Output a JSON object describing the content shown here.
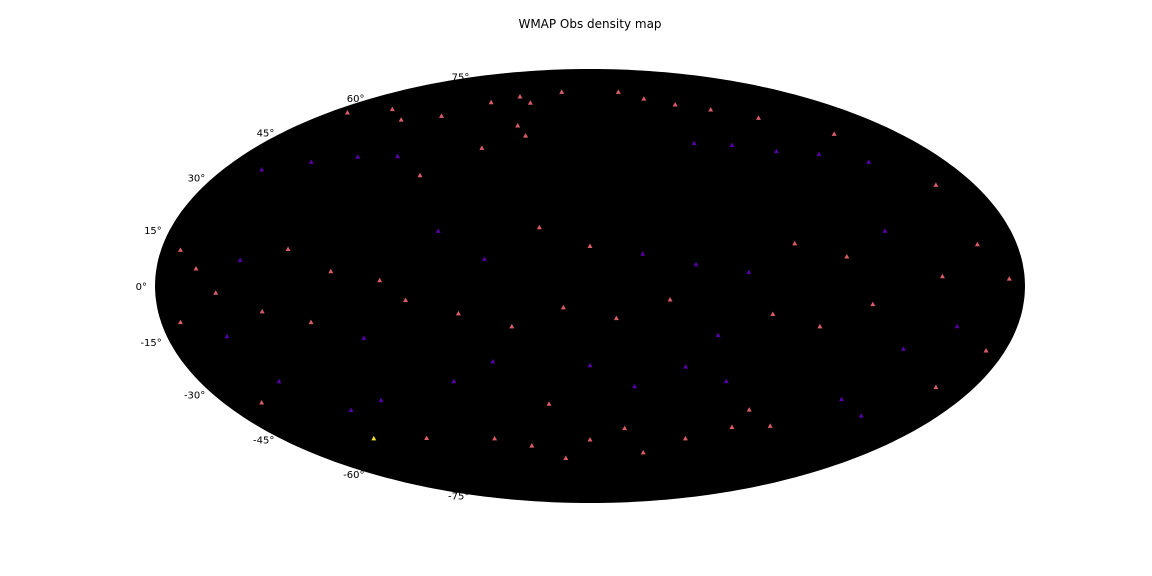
{
  "chart_data": {
    "type": "heatmap",
    "projection": "hammer",
    "title": "WMAP Obs density map",
    "xlabel": "",
    "ylabel": "",
    "lat_ticks": [
      "-75°",
      "-60°",
      "-45°",
      "-30°",
      "-15°",
      "0°",
      "15°",
      "30°",
      "45°",
      "60°",
      "75°"
    ],
    "lat_values": [
      -75,
      -60,
      -45,
      -30,
      -15,
      0,
      15,
      30,
      45,
      60,
      75
    ],
    "lon_range": [
      -180,
      180
    ],
    "lat_range": [
      -90,
      90
    ],
    "grid": false,
    "colormap": "plasma",
    "background_color": "#000000",
    "note": "Sparse low-density cells rendered as small colored marks on black sky map.",
    "cells": [
      {
        "lon": -170,
        "lat": 55,
        "v": 0.55
      },
      {
        "lon": -150,
        "lat": 60,
        "v": 0.55
      },
      {
        "lon": -130,
        "lat": 58,
        "v": 0.55
      },
      {
        "lon": -110,
        "lat": 62,
        "v": 0.55
      },
      {
        "lon": -95,
        "lat": 70,
        "v": 0.55
      },
      {
        "lon": -80,
        "lat": 74,
        "v": 0.55
      },
      {
        "lon": -60,
        "lat": 72,
        "v": 0.55
      },
      {
        "lon": -40,
        "lat": 78,
        "v": 0.55
      },
      {
        "lon": 40,
        "lat": 78,
        "v": 0.55
      },
      {
        "lon": 60,
        "lat": 74,
        "v": 0.55
      },
      {
        "lon": 80,
        "lat": 70,
        "v": 0.55
      },
      {
        "lon": 100,
        "lat": 66,
        "v": 0.55
      },
      {
        "lon": 120,
        "lat": 60,
        "v": 0.55
      },
      {
        "lon": 145,
        "lat": 50,
        "v": 0.55
      },
      {
        "lon": -160,
        "lat": 35,
        "v": 0.2
      },
      {
        "lon": -140,
        "lat": 40,
        "v": 0.2
      },
      {
        "lon": -120,
        "lat": 44,
        "v": 0.2
      },
      {
        "lon": -100,
        "lat": 46,
        "v": 0.2
      },
      {
        "lon": -80,
        "lat": 40,
        "v": 0.55
      },
      {
        "lon": -60,
        "lat": 52,
        "v": 0.55
      },
      {
        "lon": -50,
        "lat": 62,
        "v": 0.55
      },
      {
        "lon": -40,
        "lat": 58,
        "v": 0.55
      },
      {
        "lon": 60,
        "lat": 54,
        "v": 0.2
      },
      {
        "lon": 80,
        "lat": 52,
        "v": 0.2
      },
      {
        "lon": 100,
        "lat": 48,
        "v": 0.2
      },
      {
        "lon": 120,
        "lat": 45,
        "v": 0.2
      },
      {
        "lon": 140,
        "lat": 40,
        "v": 0.2
      },
      {
        "lon": 160,
        "lat": 30,
        "v": 0.55
      },
      {
        "lon": -170,
        "lat": 10,
        "v": 0.55
      },
      {
        "lon": -160,
        "lat": 5,
        "v": 0.55
      },
      {
        "lon": -150,
        "lat": -2,
        "v": 0.55
      },
      {
        "lon": -140,
        "lat": 8,
        "v": 0.2
      },
      {
        "lon": -120,
        "lat": 12,
        "v": 0.55
      },
      {
        "lon": -100,
        "lat": 5,
        "v": 0.55
      },
      {
        "lon": -80,
        "lat": 2,
        "v": 0.55
      },
      {
        "lon": -60,
        "lat": 20,
        "v": 0.2
      },
      {
        "lon": -40,
        "lat": 10,
        "v": 0.2
      },
      {
        "lon": -20,
        "lat": 22,
        "v": 0.55
      },
      {
        "lon": 0,
        "lat": 15,
        "v": 0.55
      },
      {
        "lon": 20,
        "lat": 12,
        "v": 0.2
      },
      {
        "lon": 40,
        "lat": 8,
        "v": 0.2
      },
      {
        "lon": 60,
        "lat": 5,
        "v": 0.2
      },
      {
        "lon": 80,
        "lat": 15,
        "v": 0.55
      },
      {
        "lon": 100,
        "lat": 10,
        "v": 0.55
      },
      {
        "lon": 120,
        "lat": 18,
        "v": 0.2
      },
      {
        "lon": 140,
        "lat": 3,
        "v": 0.55
      },
      {
        "lon": 160,
        "lat": 12,
        "v": 0.55
      },
      {
        "lon": 172,
        "lat": 2,
        "v": 0.55
      },
      {
        "lon": -170,
        "lat": -10,
        "v": 0.55
      },
      {
        "lon": -150,
        "lat": -15,
        "v": 0.2
      },
      {
        "lon": -130,
        "lat": -8,
        "v": 0.55
      },
      {
        "lon": -110,
        "lat": -12,
        "v": 0.55
      },
      {
        "lon": -90,
        "lat": -18,
        "v": 0.2
      },
      {
        "lon": -70,
        "lat": -5,
        "v": 0.55
      },
      {
        "lon": -50,
        "lat": -10,
        "v": 0.55
      },
      {
        "lon": -30,
        "lat": -15,
        "v": 0.55
      },
      {
        "lon": -10,
        "lat": -8,
        "v": 0.55
      },
      {
        "lon": 10,
        "lat": -12,
        "v": 0.55
      },
      {
        "lon": 30,
        "lat": -5,
        "v": 0.55
      },
      {
        "lon": 50,
        "lat": -18,
        "v": 0.2
      },
      {
        "lon": 70,
        "lat": -10,
        "v": 0.55
      },
      {
        "lon": 90,
        "lat": -14,
        "v": 0.55
      },
      {
        "lon": 110,
        "lat": -6,
        "v": 0.55
      },
      {
        "lon": 130,
        "lat": -20,
        "v": 0.2
      },
      {
        "lon": 150,
        "lat": -12,
        "v": 0.2
      },
      {
        "lon": 170,
        "lat": -18,
        "v": 0.55
      },
      {
        "lon": -160,
        "lat": -35,
        "v": 0.55
      },
      {
        "lon": -140,
        "lat": -30,
        "v": 0.2
      },
      {
        "lon": -120,
        "lat": -42,
        "v": 0.2
      },
      {
        "lon": -100,
        "lat": -40,
        "v": 0.2
      },
      {
        "lon": -60,
        "lat": -35,
        "v": 0.2
      },
      {
        "lon": -40,
        "lat": -28,
        "v": 0.2
      },
      {
        "lon": -20,
        "lat": -45,
        "v": 0.55
      },
      {
        "lon": 0,
        "lat": -30,
        "v": 0.2
      },
      {
        "lon": 20,
        "lat": -38,
        "v": 0.2
      },
      {
        "lon": 40,
        "lat": -30,
        "v": 0.2
      },
      {
        "lon": 60,
        "lat": -35,
        "v": 0.2
      },
      {
        "lon": 80,
        "lat": -45,
        "v": 0.55
      },
      {
        "lon": 120,
        "lat": -38,
        "v": 0.2
      },
      {
        "lon": 140,
        "lat": -42,
        "v": 0.2
      },
      {
        "lon": 160,
        "lat": -30,
        "v": 0.55
      },
      {
        "lon": -100,
        "lat": -55,
        "v": 0.55
      },
      {
        "lon": -60,
        "lat": -58,
        "v": 0.55
      },
      {
        "lon": -40,
        "lat": -62,
        "v": 0.55
      },
      {
        "lon": -20,
        "lat": -68,
        "v": 0.55
      },
      {
        "lon": 0,
        "lat": -60,
        "v": 0.55
      },
      {
        "lon": 20,
        "lat": -55,
        "v": 0.55
      },
      {
        "lon": 40,
        "lat": -65,
        "v": 0.55
      },
      {
        "lon": 60,
        "lat": -58,
        "v": 0.55
      },
      {
        "lon": 80,
        "lat": -52,
        "v": 0.55
      },
      {
        "lon": 100,
        "lat": -50,
        "v": 0.55
      },
      {
        "lon": -130,
        "lat": -52,
        "v": 0.95
      }
    ]
  }
}
